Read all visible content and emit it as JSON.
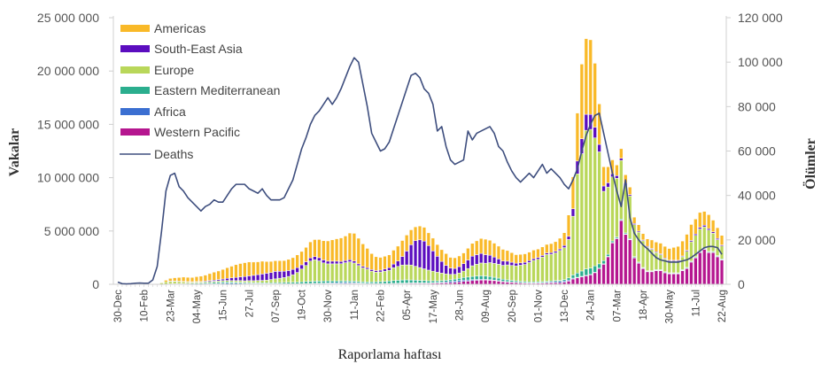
{
  "chart_data": {
    "type": "bar",
    "stacked": true,
    "xlabel": "Raporlama haftası",
    "ylabel": "Vakalar",
    "y2label": "Ölümler",
    "ylim": [
      0,
      25000000
    ],
    "y2lim": [
      0,
      120000
    ],
    "yticks": [
      "0",
      "5 000 000",
      "10 000 000",
      "15 000 000",
      "20 000 000",
      "25 000 000"
    ],
    "ytick_values": [
      0,
      5000000,
      10000000,
      15000000,
      20000000,
      25000000
    ],
    "y2ticks": [
      "0",
      "20 000",
      "40 000",
      "60 000",
      "80 000",
      "100 000",
      "120 000"
    ],
    "y2tick_values": [
      0,
      20000,
      40000,
      60000,
      80000,
      100000,
      120000
    ],
    "x_tick_labels": [
      "30-Dec",
      "10-Feb",
      "23-Mar",
      "04-May",
      "15-Jun",
      "27-Jul",
      "07-Sep",
      "19-Oct",
      "30-Nov",
      "11-Jan",
      "22-Feb",
      "05-Apr",
      "17-May",
      "28-Jun",
      "09-Aug",
      "20-Sep",
      "01-Nov",
      "13-Dec",
      "24-Jan",
      "07-Mar",
      "18-Apr",
      "30-May",
      "11-Jul",
      "22-Aug"
    ],
    "legend_position": "top-left",
    "grid": false,
    "series": [
      {
        "name": "Western Pacific",
        "color": "#B5168F",
        "values": [
          0,
          0,
          0,
          2000,
          10000,
          20000,
          20000,
          10000,
          5000,
          3000,
          5000,
          5000,
          10000,
          10000,
          10000,
          10000,
          10000,
          5000,
          5000,
          5000,
          5000,
          5000,
          10000,
          10000,
          15000,
          20000,
          20000,
          25000,
          30000,
          30000,
          35000,
          40000,
          40000,
          35000,
          30000,
          30000,
          30000,
          30000,
          30000,
          30000,
          30000,
          30000,
          30000,
          35000,
          40000,
          45000,
          50000,
          50000,
          60000,
          60000,
          60000,
          70000,
          80000,
          80000,
          80000,
          70000,
          60000,
          50000,
          50000,
          50000,
          50000,
          50000,
          50000,
          60000,
          70000,
          80000,
          90000,
          100000,
          100000,
          100000,
          100000,
          100000,
          110000,
          120000,
          130000,
          140000,
          160000,
          180000,
          220000,
          270000,
          300000,
          350000,
          380000,
          400000,
          400000,
          380000,
          350000,
          300000,
          250000,
          220000,
          200000,
          180000,
          150000,
          130000,
          120000,
          120000,
          120000,
          120000,
          130000,
          140000,
          150000,
          150000,
          200000,
          300000,
          500000,
          600000,
          700000,
          800000,
          900000,
          1100000,
          1500000,
          1900000,
          2600000,
          3900000,
          4300000,
          6000000,
          4700000,
          4200000,
          2500000,
          2000000,
          1500000,
          1200000,
          1200000,
          1300000,
          1300000,
          1100000,
          1000000,
          1000000,
          1000000,
          1300000,
          1500000,
          2100000,
          2500000,
          3000000,
          3300000,
          3000000,
          3000000,
          2600000,
          2300000
        ]
      },
      {
        "name": "Africa",
        "color": "#3B6FD1",
        "values": [
          0,
          0,
          0,
          0,
          0,
          0,
          0,
          0,
          0,
          0,
          0,
          5000,
          10000,
          10000,
          10000,
          10000,
          20000,
          20000,
          30000,
          30000,
          40000,
          50000,
          60000,
          70000,
          80000,
          90000,
          90000,
          80000,
          70000,
          60000,
          50000,
          40000,
          40000,
          30000,
          30000,
          30000,
          30000,
          30000,
          30000,
          30000,
          30000,
          30000,
          30000,
          40000,
          40000,
          50000,
          50000,
          60000,
          70000,
          80000,
          90000,
          100000,
          100000,
          90000,
          80000,
          60000,
          50000,
          40000,
          40000,
          30000,
          30000,
          30000,
          30000,
          30000,
          30000,
          30000,
          30000,
          30000,
          30000,
          30000,
          30000,
          30000,
          40000,
          50000,
          70000,
          90000,
          110000,
          130000,
          140000,
          130000,
          110000,
          90000,
          80000,
          70000,
          60000,
          50000,
          40000,
          40000,
          30000,
          30000,
          20000,
          20000,
          20000,
          20000,
          20000,
          20000,
          30000,
          40000,
          60000,
          80000,
          100000,
          120000,
          120000,
          100000,
          80000,
          60000,
          50000,
          40000,
          30000,
          30000,
          20000,
          20000,
          20000,
          20000,
          20000,
          20000,
          20000,
          20000,
          20000,
          20000,
          20000,
          20000,
          20000,
          20000,
          20000,
          20000,
          20000,
          20000,
          20000,
          20000,
          20000,
          20000,
          20000,
          20000,
          20000,
          20000,
          20000,
          20000,
          20000
        ]
      },
      {
        "name": "Eastern Mediterranean",
        "color": "#2BAE8E",
        "values": [
          0,
          0,
          0,
          0,
          0,
          0,
          0,
          0,
          0,
          0,
          10000,
          20000,
          30000,
          40000,
          40000,
          50000,
          60000,
          70000,
          80000,
          90000,
          100000,
          110000,
          120000,
          130000,
          130000,
          120000,
          110000,
          100000,
          100000,
          90000,
          90000,
          80000,
          80000,
          80000,
          80000,
          90000,
          100000,
          110000,
          120000,
          130000,
          140000,
          150000,
          170000,
          190000,
          200000,
          200000,
          200000,
          200000,
          190000,
          180000,
          170000,
          160000,
          150000,
          140000,
          140000,
          130000,
          130000,
          130000,
          140000,
          160000,
          180000,
          200000,
          230000,
          260000,
          280000,
          300000,
          300000,
          280000,
          260000,
          240000,
          220000,
          200000,
          180000,
          160000,
          150000,
          150000,
          160000,
          180000,
          200000,
          240000,
          270000,
          300000,
          320000,
          330000,
          320000,
          300000,
          270000,
          240000,
          200000,
          170000,
          150000,
          130000,
          120000,
          110000,
          100000,
          100000,
          100000,
          100000,
          100000,
          100000,
          100000,
          100000,
          120000,
          200000,
          300000,
          400000,
          500000,
          600000,
          600000,
          600000,
          400000,
          300000,
          200000,
          150000,
          120000,
          100000,
          100000,
          80000,
          80000,
          70000,
          60000,
          60000,
          60000,
          60000,
          60000,
          60000,
          60000,
          60000,
          60000,
          60000,
          70000,
          70000,
          70000,
          70000,
          70000,
          70000,
          70000,
          70000,
          70000
        ]
      },
      {
        "name": "Europe",
        "color": "#B9D75A",
        "values": [
          0,
          0,
          0,
          0,
          0,
          0,
          0,
          0,
          10000,
          50000,
          120000,
          200000,
          250000,
          250000,
          220000,
          200000,
          150000,
          130000,
          120000,
          100000,
          100000,
          100000,
          100000,
          120000,
          120000,
          130000,
          130000,
          140000,
          150000,
          150000,
          170000,
          180000,
          200000,
          220000,
          250000,
          300000,
          350000,
          400000,
          450000,
          550000,
          700000,
          900000,
          1200000,
          1500000,
          1900000,
          2000000,
          1900000,
          1700000,
          1600000,
          1600000,
          1600000,
          1600000,
          1700000,
          1800000,
          1700000,
          1500000,
          1300000,
          1200000,
          1000000,
          900000,
          900000,
          950000,
          1000000,
          1200000,
          1300000,
          1400000,
          1400000,
          1400000,
          1300000,
          1200000,
          1100000,
          1000000,
          900000,
          800000,
          700000,
          600000,
          500000,
          450000,
          500000,
          600000,
          800000,
          1000000,
          1100000,
          1200000,
          1200000,
          1300000,
          1300000,
          1300000,
          1300000,
          1400000,
          1400000,
          1400000,
          1500000,
          1600000,
          1800000,
          2000000,
          2100000,
          2300000,
          2500000,
          2500000,
          2600000,
          2800000,
          3000000,
          3600000,
          5500000,
          9300000,
          11000000,
          13000000,
          13000000,
          12000000,
          10500000,
          6500000,
          6300000,
          6000000,
          5500000,
          5500000,
          4500000,
          4000000,
          3000000,
          2800000,
          2500000,
          2200000,
          2000000,
          1600000,
          1400000,
          1200000,
          1100000,
          1100000,
          1100000,
          1200000,
          1500000,
          1800000,
          2000000,
          2100000,
          2000000,
          2000000,
          1700000,
          1500000,
          1200000
        ]
      },
      {
        "name": "South-East Asia",
        "color": "#5B0DBF",
        "values": [
          0,
          0,
          0,
          0,
          0,
          0,
          0,
          0,
          0,
          0,
          0,
          0,
          5000,
          5000,
          10000,
          10000,
          15000,
          20000,
          30000,
          40000,
          70000,
          90000,
          100000,
          120000,
          150000,
          200000,
          250000,
          300000,
          350000,
          400000,
          450000,
          500000,
          550000,
          600000,
          650000,
          650000,
          700000,
          650000,
          600000,
          550000,
          500000,
          450000,
          400000,
          350000,
          300000,
          300000,
          300000,
          280000,
          250000,
          250000,
          250000,
          220000,
          200000,
          200000,
          180000,
          160000,
          150000,
          150000,
          150000,
          150000,
          170000,
          200000,
          250000,
          350000,
          500000,
          800000,
          1300000,
          1900000,
          2400000,
          2600000,
          2600000,
          2300000,
          1900000,
          1500000,
          1100000,
          800000,
          600000,
          550000,
          600000,
          700000,
          800000,
          900000,
          900000,
          900000,
          800000,
          700000,
          600000,
          500000,
          400000,
          350000,
          300000,
          250000,
          220000,
          200000,
          180000,
          170000,
          160000,
          150000,
          150000,
          150000,
          150000,
          150000,
          200000,
          300000,
          700000,
          1200000,
          1400000,
          1500000,
          1400000,
          1000000,
          700000,
          500000,
          400000,
          300000,
          250000,
          200000,
          150000,
          120000,
          100000,
          100000,
          80000,
          80000,
          80000,
          80000,
          80000,
          80000,
          80000,
          80000,
          80000,
          80000,
          100000,
          120000,
          130000,
          150000,
          150000,
          140000,
          130000,
          120000,
          100000
        ]
      },
      {
        "name": "Americas",
        "color": "#F9B928",
        "values": [
          0,
          0,
          0,
          0,
          0,
          0,
          0,
          0,
          0,
          10000,
          50000,
          150000,
          250000,
          300000,
          350000,
          400000,
          400000,
          400000,
          450000,
          500000,
          550000,
          650000,
          750000,
          800000,
          900000,
          1000000,
          1100000,
          1200000,
          1250000,
          1300000,
          1300000,
          1250000,
          1200000,
          1200000,
          1100000,
          1050000,
          1000000,
          1000000,
          1000000,
          1050000,
          1100000,
          1200000,
          1250000,
          1350000,
          1500000,
          1600000,
          1700000,
          1800000,
          1900000,
          2000000,
          2100000,
          2200000,
          2300000,
          2500000,
          2600000,
          2400000,
          2100000,
          1800000,
          1500000,
          1300000,
          1200000,
          1200000,
          1200000,
          1300000,
          1400000,
          1500000,
          1500000,
          1400000,
          1300000,
          1300000,
          1300000,
          1200000,
          1200000,
          1100000,
          1100000,
          1100000,
          1000000,
          1000000,
          1000000,
          1000000,
          1100000,
          1200000,
          1300000,
          1400000,
          1450000,
          1400000,
          1300000,
          1200000,
          1100000,
          1000000,
          900000,
          800000,
          800000,
          800000,
          800000,
          800000,
          800000,
          800000,
          800000,
          850000,
          900000,
          1000000,
          1200000,
          2000000,
          3000000,
          4500000,
          7000000,
          7100000,
          7000000,
          6000000,
          3800000,
          1800000,
          1500000,
          1300000,
          1000000,
          900000,
          800000,
          700000,
          600000,
          600000,
          600000,
          700000,
          800000,
          900000,
          1000000,
          1100000,
          1100000,
          1200000,
          1300000,
          1400000,
          1500000,
          1500000,
          1400000,
          1400000,
          1300000,
          1300000,
          1100000,
          1000000,
          900000
        ]
      }
    ],
    "line_series": {
      "name": "Deaths",
      "color": "#3E4E7E",
      "axis": "right",
      "values": [
        1000,
        300,
        200,
        300,
        500,
        600,
        500,
        500,
        2000,
        8000,
        24000,
        42000,
        49000,
        50000,
        44000,
        42000,
        39000,
        37000,
        35000,
        33000,
        35000,
        36000,
        38000,
        37000,
        37000,
        40000,
        43000,
        45000,
        45000,
        45000,
        43000,
        42000,
        41000,
        43000,
        40000,
        38000,
        38000,
        38000,
        39000,
        43000,
        47000,
        54000,
        61000,
        66000,
        72000,
        76000,
        78000,
        81000,
        84000,
        81000,
        84000,
        88000,
        93000,
        98000,
        102000,
        100000,
        90000,
        80000,
        68000,
        64000,
        60000,
        61000,
        64000,
        70000,
        76000,
        82000,
        88000,
        94000,
        95000,
        93000,
        88000,
        86000,
        81000,
        69000,
        71000,
        62000,
        56000,
        54000,
        55000,
        56000,
        69000,
        65000,
        68000,
        69000,
        70000,
        71000,
        68000,
        62000,
        60000,
        55000,
        51000,
        48000,
        46000,
        48000,
        50000,
        48000,
        51000,
        54000,
        50000,
        52000,
        50000,
        48000,
        45000,
        43000,
        47000,
        52000,
        60000,
        67000,
        72000,
        76000,
        77000,
        68000,
        59000,
        50000,
        42000,
        35000,
        47000,
        30000,
        23000,
        20000,
        17700,
        16000,
        14000,
        12000,
        11000,
        10500,
        10000,
        10000,
        10000,
        10500,
        11000,
        12000,
        13500,
        15000,
        16500,
        17000,
        17000,
        16500,
        13500
      ]
    },
    "legend": [
      {
        "label": "Americas",
        "color": "#F9B928",
        "kind": "bar"
      },
      {
        "label": "South-East Asia",
        "color": "#5B0DBF",
        "kind": "bar"
      },
      {
        "label": "Europe",
        "color": "#B9D75A",
        "kind": "bar"
      },
      {
        "label": "Eastern Mediterranean",
        "color": "#2BAE8E",
        "kind": "bar"
      },
      {
        "label": "Africa",
        "color": "#3B6FD1",
        "kind": "bar"
      },
      {
        "label": "Western Pacific",
        "color": "#B5168F",
        "kind": "bar"
      },
      {
        "label": "Deaths",
        "color": "#3E4E7E",
        "kind": "line"
      }
    ]
  }
}
